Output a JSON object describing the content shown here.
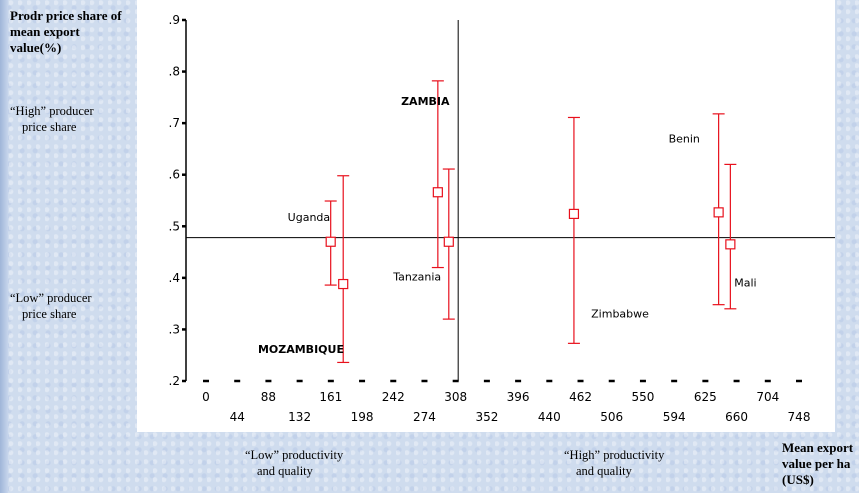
{
  "y_axis_title": "Prodr price share of mean export value(%)",
  "x_axis_title": "Mean export value per ha (US$)",
  "annotations": {
    "high_price": [
      "“High” producer",
      "price share"
    ],
    "low_price": [
      "“Low” producer",
      "price share"
    ],
    "low_productivity": [
      "“Low” productivity",
      "and quality"
    ],
    "high_productivity": [
      "“High” productivity",
      "and quality"
    ]
  },
  "chart_data": {
    "type": "scatter",
    "title": "",
    "xlabel": "Mean export value per ha (US$)",
    "ylabel": "Prodr price share of mean export value(%)",
    "ylim": [
      0.2,
      0.9
    ],
    "y_ticks": [
      ".2",
      ".3",
      ".4",
      ".5",
      ".6",
      ".7",
      ".8",
      ".9"
    ],
    "x_tick_labels_row1": [
      "0",
      "88",
      "161",
      "242",
      "308",
      "396",
      "462",
      "550",
      "625",
      "704"
    ],
    "x_tick_labels_row2": [
      "44",
      "132",
      "198",
      "274",
      "352",
      "440",
      "506",
      "594",
      "660",
      "748"
    ],
    "ref_line_x": 308,
    "ref_line_y": 0.478,
    "error_bar_points": [
      {
        "x": 145,
        "y": 0.47,
        "low": 0.386,
        "high": 0.549
      },
      {
        "x": 161,
        "y": 0.388,
        "low": 0.236,
        "high": 0.598
      },
      {
        "x": 282,
        "y": 0.566,
        "low": 0.42,
        "high": 0.782
      },
      {
        "x": 296,
        "y": 0.47,
        "low": 0.32,
        "high": 0.611
      },
      {
        "x": 456,
        "y": 0.524,
        "low": 0.273,
        "high": 0.711
      },
      {
        "x": 641,
        "y": 0.527,
        "low": 0.348,
        "high": 0.718
      },
      {
        "x": 656,
        "y": 0.465,
        "low": 0.34,
        "high": 0.62
      }
    ],
    "country_labels": [
      {
        "text": "Uganda",
        "x": 90,
        "y": 0.51,
        "bold": false
      },
      {
        "text": "ZAMBIA",
        "x": 235,
        "y": 0.735,
        "bold": true
      },
      {
        "text": "Tanzania",
        "x": 225,
        "y": 0.395,
        "bold": false
      },
      {
        "text": "MOZAMBIQUE",
        "x": 52,
        "y": 0.254,
        "bold": true
      },
      {
        "text": "Zimbabwe",
        "x": 478,
        "y": 0.323,
        "bold": false
      },
      {
        "text": "Benin",
        "x": 577,
        "y": 0.662,
        "bold": false
      },
      {
        "text": "Mali",
        "x": 661,
        "y": 0.383,
        "bold": false
      }
    ],
    "grid": false,
    "marker_color": "#e8101c"
  }
}
